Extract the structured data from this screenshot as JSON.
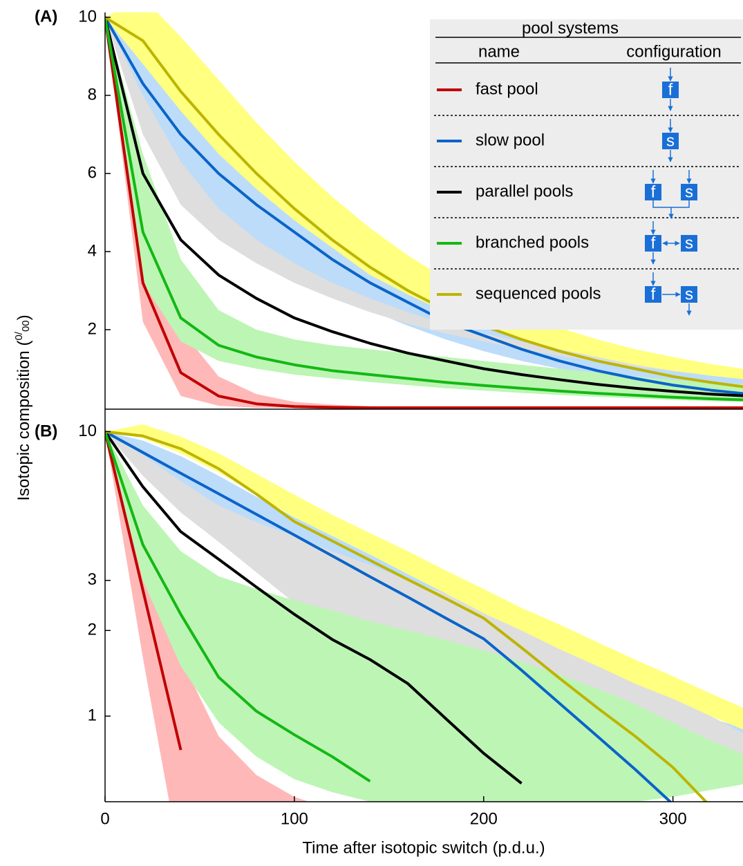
{
  "chart_data": [
    {
      "type": "line",
      "label": "(A)",
      "ylabel": {
        "prefix": "Isotopic composition (",
        "sup": "0",
        "mid": "/",
        "sub": "00",
        "suffix": ")"
      },
      "legend": {
        "title": "pool systems",
        "columns": [
          "name",
          "configuration"
        ]
      },
      "x": [
        0,
        20,
        40,
        60,
        80,
        100,
        120,
        140,
        160,
        180,
        200,
        220,
        240,
        260,
        280,
        300,
        320,
        340
      ],
      "xlim": [
        0,
        337
      ],
      "ylim": [
        0,
        10
      ],
      "yticks": [
        2,
        4,
        6,
        8,
        10
      ],
      "log": false,
      "series": [
        {
          "name": "fast pool",
          "config": [
            "f"
          ],
          "color": "#c00000",
          "band_color": "#ffb8b8",
          "values": [
            10,
            3.2,
            0.9,
            0.3,
            0.1,
            0.03,
            0.01,
            0,
            0,
            0,
            0,
            0,
            0,
            0,
            0,
            0,
            0,
            0
          ],
          "lower": [
            10,
            2.2,
            0.3,
            0.05,
            0,
            0,
            0,
            0,
            0,
            0,
            0,
            0,
            0,
            0,
            0,
            0,
            0,
            0
          ],
          "upper": [
            10,
            5.0,
            2.0,
            0.8,
            0.35,
            0.15,
            0.08,
            0.04,
            0.02,
            0.01,
            0,
            0,
            0,
            0,
            0,
            0,
            0,
            0
          ]
        },
        {
          "name": "slow pool",
          "config": [
            "s"
          ],
          "color": "#0a64c8",
          "band_color": "#bcdcfa",
          "values": [
            10,
            8.3,
            7.0,
            6.0,
            5.2,
            4.5,
            3.8,
            3.2,
            2.7,
            2.2,
            1.85,
            1.5,
            1.2,
            0.95,
            0.75,
            0.58,
            0.45,
            0.35
          ],
          "lower": [
            10,
            7.4,
            6.0,
            5.0,
            4.2,
            3.6,
            3.0,
            2.5,
            2.1,
            1.75,
            1.45,
            1.2,
            1.0,
            0.82,
            0.66,
            0.52,
            0.42,
            0.34
          ],
          "upper": [
            10,
            9.0,
            7.9,
            6.9,
            6.0,
            5.2,
            4.5,
            3.9,
            3.3,
            2.8,
            2.4,
            2.0,
            1.7,
            1.45,
            1.25,
            1.05,
            0.9,
            0.78
          ]
        },
        {
          "name": "parallel pools",
          "config": [
            "f",
            "s"
          ],
          "color": "#000000",
          "band_color": "#dedede",
          "values": [
            10,
            6.0,
            4.3,
            3.4,
            2.8,
            2.3,
            1.95,
            1.65,
            1.4,
            1.2,
            1.0,
            0.85,
            0.72,
            0.6,
            0.5,
            0.42,
            0.35,
            0.3
          ],
          "lower": [
            10,
            7.0,
            5.2,
            4.3,
            3.7,
            3.2,
            2.8,
            2.45,
            2.15,
            1.9,
            1.7,
            1.5,
            1.33,
            1.18,
            1.05,
            0.93,
            0.83,
            0.74
          ],
          "upper": [
            10,
            8.0,
            6.3,
            5.1,
            4.3,
            3.7,
            3.2,
            2.8,
            2.45,
            2.15,
            1.9,
            1.7,
            1.5,
            1.33,
            1.18,
            1.05,
            0.93,
            0.83
          ]
        },
        {
          "name": "branched pools",
          "config": [
            "f",
            "s"
          ],
          "color": "#14b814",
          "band_color": "#bdf5b5",
          "values": [
            10,
            4.5,
            2.3,
            1.6,
            1.3,
            1.1,
            0.95,
            0.85,
            0.75,
            0.65,
            0.57,
            0.5,
            0.43,
            0.37,
            0.32,
            0.27,
            0.23,
            0.2
          ],
          "lower": [
            10,
            3.2,
            1.7,
            1.2,
            1.0,
            0.85,
            0.75,
            0.66,
            0.58,
            0.5,
            0.44,
            0.38,
            0.33,
            0.28,
            0.24,
            0.2,
            0.17,
            0.15
          ],
          "upper": [
            10,
            6.5,
            3.8,
            2.5,
            2.0,
            1.75,
            1.6,
            1.5,
            1.4,
            1.3,
            1.2,
            1.1,
            1.0,
            0.9,
            0.8,
            0.72,
            0.65,
            0.6
          ]
        },
        {
          "name": "sequenced pools",
          "config": [
            "f",
            "s"
          ],
          "color": "#bdb400",
          "band_color": "#ffff80",
          "values": [
            10,
            9.4,
            8.1,
            7.0,
            6.0,
            5.1,
            4.3,
            3.6,
            3.0,
            2.5,
            2.1,
            1.75,
            1.45,
            1.2,
            1.0,
            0.8,
            0.65,
            0.52
          ],
          "lower": [
            10,
            8.8,
            7.6,
            6.5,
            5.6,
            4.8,
            4.1,
            3.4,
            2.9,
            2.45,
            2.05,
            1.75,
            1.5,
            1.3,
            1.1,
            0.95,
            0.82,
            0.72
          ],
          "upper": [
            10,
            10.5,
            9.5,
            8.4,
            7.3,
            6.3,
            5.4,
            4.6,
            3.9,
            3.3,
            2.8,
            2.4,
            2.05,
            1.75,
            1.5,
            1.3,
            1.12,
            0.98
          ]
        }
      ]
    },
    {
      "type": "line",
      "label": "(B)",
      "xlabel": "Time after isotopic switch  (p.d.u.)",
      "x": [
        0,
        20,
        40,
        60,
        80,
        100,
        120,
        140,
        160,
        180,
        200,
        220,
        240,
        260,
        280,
        300,
        320,
        340
      ],
      "xlim": [
        0,
        337
      ],
      "xticks": [
        0,
        100,
        200,
        300
      ],
      "ylim": [
        0.5,
        12
      ],
      "yticks": [
        1,
        2,
        3,
        10
      ],
      "log": true,
      "series": [
        {
          "color": "#c00000",
          "band_color": "#ffb8b8",
          "values": [
            10,
            2.77,
            0.76,
            null,
            null,
            null,
            null,
            null,
            null,
            null,
            null,
            null,
            null,
            null,
            null,
            null,
            null,
            null
          ],
          "lower": [
            10,
            1.6,
            0.3,
            0.3,
            0.3,
            0.3,
            0.3,
            0.3,
            0.3,
            0.3,
            0.3,
            0.3,
            0.3,
            0.3,
            0.3,
            0.3,
            0.3,
            0.3
          ],
          "upper": [
            10,
            4.5,
            1.6,
            0.85,
            0.62,
            0.52,
            0.47,
            0.45,
            0.3,
            0.3,
            0.3,
            0.3,
            0.3,
            0.3,
            0.3,
            0.3,
            0.3,
            0.3
          ]
        },
        {
          "color": "#0a64c8",
          "band_color": "#bcdcfa",
          "values": [
            10,
            8.45,
            7.14,
            6.05,
            5.12,
            4.33,
            3.66,
            3.09,
            2.62,
            2.21,
            1.87,
            1.45,
            1.11,
            0.85,
            0.65,
            0.49,
            null,
            null
          ],
          "lower": [
            10,
            8.0,
            6.6,
            5.5,
            4.6,
            3.9,
            3.3,
            2.8,
            2.35,
            2.0,
            1.7,
            1.45,
            1.25,
            1.1,
            0.97,
            0.86,
            0.77,
            0.7
          ],
          "upper": [
            10,
            9.3,
            8.2,
            7.0,
            5.9,
            5.0,
            4.3,
            3.7,
            3.2,
            2.75,
            2.35,
            2.0,
            1.72,
            1.48,
            1.28,
            1.12,
            0.98,
            0.9
          ]
        },
        {
          "color": "#000000",
          "band_color": "#dedede",
          "values": [
            10,
            6.4,
            4.45,
            3.56,
            2.84,
            2.28,
            1.86,
            1.58,
            1.3,
            0.98,
            0.74,
            0.58,
            null,
            null,
            null,
            null,
            null,
            null
          ],
          "lower": [
            10,
            7.0,
            5.2,
            4.1,
            3.2,
            2.5,
            2.2,
            1.95,
            1.75,
            1.6,
            1.45,
            1.3,
            1.15,
            1.02,
            0.9,
            0.8,
            0.7,
            0.62
          ],
          "upper": [
            10,
            8.3,
            6.7,
            5.5,
            4.8,
            4.3,
            3.8,
            3.4,
            3.0,
            2.7,
            2.4,
            2.1,
            1.85,
            1.6,
            1.4,
            1.2,
            1.0,
            0.85
          ]
        },
        {
          "color": "#14b814",
          "band_color": "#bdf5b5",
          "values": [
            10,
            4.0,
            2.28,
            1.37,
            1.04,
            0.86,
            0.72,
            0.59,
            null,
            null,
            null,
            null,
            null,
            null,
            null,
            null,
            null,
            null
          ],
          "lower": [
            10,
            3.0,
            1.5,
            0.95,
            0.72,
            0.6,
            0.54,
            0.5,
            0.48,
            0.47,
            0.47,
            0.47,
            0.48,
            0.49,
            0.5,
            0.52,
            0.55,
            0.58
          ],
          "upper": [
            10,
            5.5,
            3.8,
            3.1,
            2.8,
            2.55,
            2.35,
            2.15,
            2.0,
            1.85,
            1.7,
            1.55,
            1.4,
            1.25,
            1.1,
            0.95,
            0.82,
            0.72
          ]
        },
        {
          "color": "#bdb400",
          "band_color": "#ffff80",
          "values": [
            10,
            9.66,
            8.71,
            7.41,
            6.03,
            4.83,
            4.13,
            3.53,
            3.02,
            2.59,
            2.21,
            1.74,
            1.36,
            1.07,
            0.85,
            0.66,
            0.48,
            null
          ],
          "lower": [
            10,
            9.5,
            8.4,
            7.2,
            6.0,
            5.0,
            4.3,
            3.7,
            3.15,
            2.7,
            2.3,
            2.0,
            1.72,
            1.5,
            1.3,
            1.15,
            1.0,
            0.88
          ],
          "upper": [
            10,
            10.6,
            9.6,
            8.4,
            7.1,
            6.0,
            5.1,
            4.4,
            3.8,
            3.25,
            2.8,
            2.4,
            2.1,
            1.82,
            1.58,
            1.38,
            1.2,
            1.05
          ]
        }
      ]
    }
  ]
}
